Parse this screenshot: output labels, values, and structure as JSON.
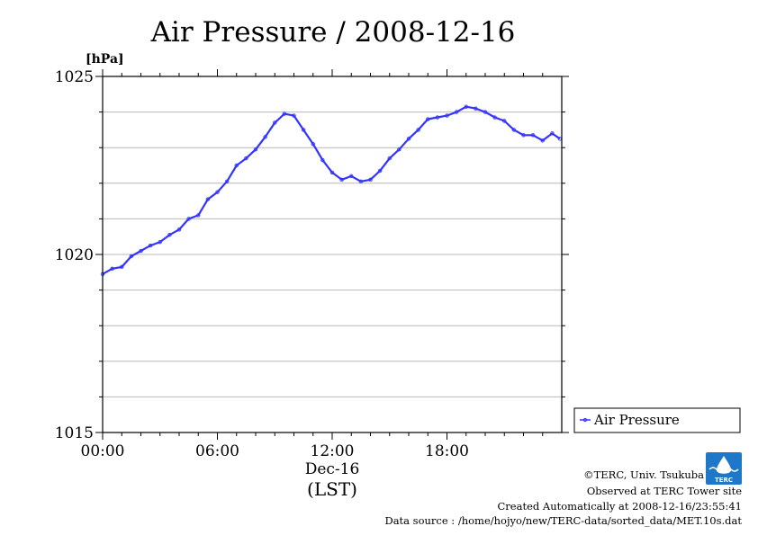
{
  "chart_data": {
    "type": "line",
    "title": "Air Pressure / 2008-12-16",
    "ylabel": "[hPa]",
    "xlabel": "(LST)",
    "x_date_label": "Dec-16",
    "ylim": [
      1015,
      1025
    ],
    "xlim_hours": [
      0,
      24
    ],
    "y_ticks_major": [
      1015,
      1020,
      1025
    ],
    "y_tick_labels": [
      "1015",
      "1020",
      "1025"
    ],
    "x_ticks": [
      0,
      6,
      12,
      18
    ],
    "x_tick_labels": [
      "00:00",
      "06:00",
      "12:00",
      "18:00"
    ],
    "grid": true,
    "legend_position": "right",
    "series": [
      {
        "name": "Air Pressure",
        "color": "#3333ff",
        "hours": [
          0.0,
          0.5,
          1.0,
          1.5,
          2.0,
          2.5,
          3.0,
          3.5,
          4.0,
          4.5,
          5.0,
          5.5,
          6.0,
          6.5,
          7.0,
          7.5,
          8.0,
          8.5,
          9.0,
          9.5,
          10.0,
          10.5,
          11.0,
          11.5,
          12.0,
          12.5,
          13.0,
          13.5,
          14.0,
          14.5,
          15.0,
          15.5,
          16.0,
          16.5,
          17.0,
          17.5,
          18.0,
          18.5,
          19.0,
          19.5,
          20.0,
          20.5,
          21.0,
          21.5,
          22.0,
          22.5,
          23.0,
          23.5,
          23.9
        ],
        "values": [
          1019.45,
          1019.6,
          1019.65,
          1019.95,
          1020.1,
          1020.25,
          1020.35,
          1020.55,
          1020.7,
          1021.0,
          1021.1,
          1021.55,
          1021.75,
          1022.05,
          1022.5,
          1022.7,
          1022.95,
          1023.3,
          1023.7,
          1023.95,
          1023.9,
          1023.5,
          1023.1,
          1022.65,
          1022.3,
          1022.1,
          1022.2,
          1022.05,
          1022.1,
          1022.35,
          1022.7,
          1022.95,
          1023.25,
          1023.5,
          1023.8,
          1023.85,
          1023.9,
          1024.0,
          1024.15,
          1024.1,
          1024.0,
          1023.85,
          1023.75,
          1023.5,
          1023.35,
          1023.35,
          1023.2,
          1023.4,
          1023.25
        ]
      }
    ]
  },
  "footer": {
    "copyright": "©TERC, Univ. Tsukuba",
    "site": "Observed at TERC Tower site",
    "created": "Created Automatically at 2008-12-16/23:55:41",
    "source": "Data source : /home/hojyo/new/TERC-data/sorted_data/MET.10s.dat"
  },
  "logo": {
    "text": "TERC",
    "color": "#1f77c8"
  }
}
